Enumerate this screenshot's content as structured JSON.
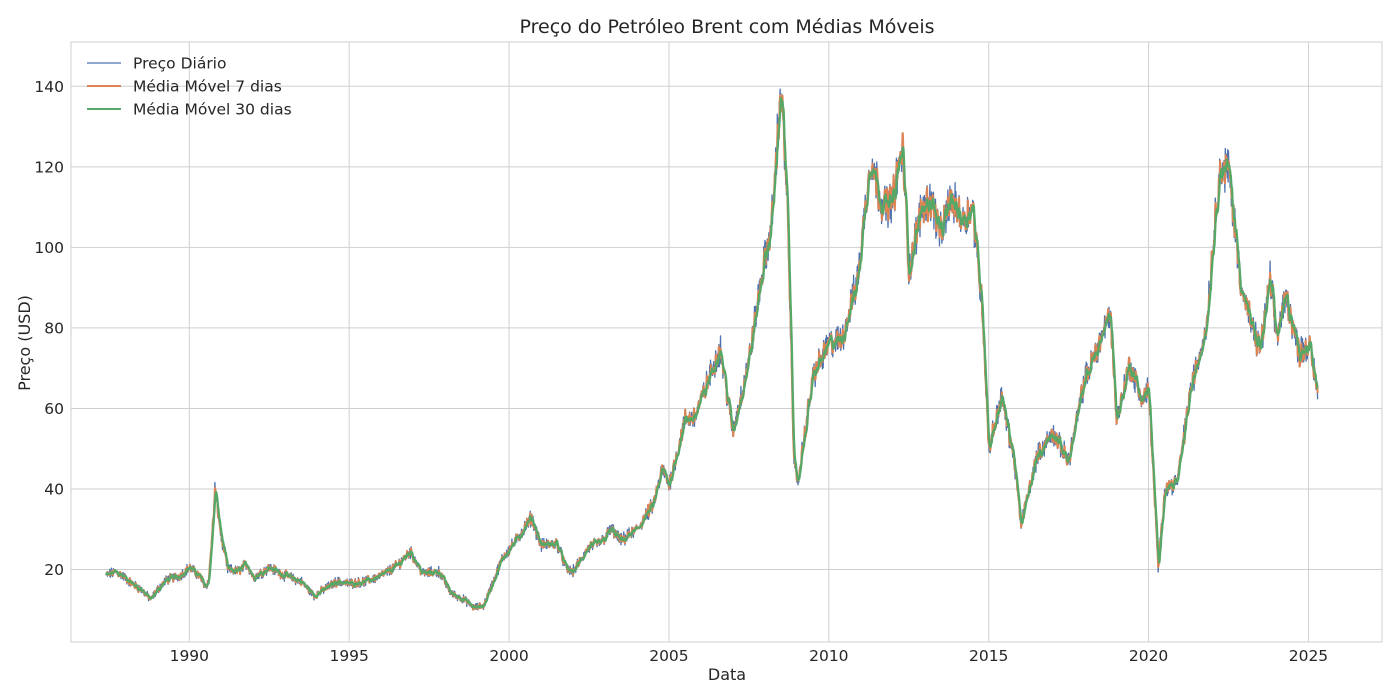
{
  "chart_data": {
    "type": "line",
    "title": "Preço do Petróleo Brent com Médias Móveis",
    "xlabel": "Data",
    "ylabel": "Preço (USD)",
    "xlim": [
      1986.3,
      2027.3
    ],
    "ylim": [
      2,
      151
    ],
    "x_ticks": [
      1990,
      1995,
      2000,
      2005,
      2010,
      2015,
      2020,
      2025
    ],
    "y_ticks": [
      20,
      40,
      60,
      80,
      100,
      120,
      140
    ],
    "grid": true,
    "legend_position": "top-left",
    "series": [
      {
        "name": "Preço Diário",
        "color": "#4c72b0"
      },
      {
        "name": "Média Móvel 7 dias",
        "color": "#dd8452"
      },
      {
        "name": "Média Móvel 30 dias",
        "color": "#55a868"
      }
    ],
    "price_points": [
      [
        1987.4,
        18.5
      ],
      [
        1987.7,
        19.5
      ],
      [
        1987.9,
        18.5
      ],
      [
        1988.2,
        16.5
      ],
      [
        1988.5,
        15.0
      ],
      [
        1988.8,
        12.5
      ],
      [
        1989.0,
        15.0
      ],
      [
        1989.3,
        17.5
      ],
      [
        1989.7,
        18.5
      ],
      [
        1990.0,
        20.5
      ],
      [
        1990.3,
        18.5
      ],
      [
        1990.5,
        16.0
      ],
      [
        1990.6,
        17.0
      ],
      [
        1990.75,
        33.0
      ],
      [
        1990.8,
        40.0
      ],
      [
        1991.0,
        28.0
      ],
      [
        1991.2,
        20.0
      ],
      [
        1991.5,
        19.5
      ],
      [
        1991.8,
        21.5
      ],
      [
        1992.0,
        18.0
      ],
      [
        1992.5,
        20.5
      ],
      [
        1993.0,
        18.5
      ],
      [
        1993.5,
        17.0
      ],
      [
        1993.9,
        13.5
      ],
      [
        1994.3,
        15.5
      ],
      [
        1994.6,
        17.0
      ],
      [
        1995.0,
        16.5
      ],
      [
        1995.5,
        17.0
      ],
      [
        1996.0,
        18.5
      ],
      [
        1996.5,
        21.0
      ],
      [
        1996.9,
        24.5
      ],
      [
        1997.3,
        19.0
      ],
      [
        1997.8,
        19.5
      ],
      [
        1998.2,
        14.0
      ],
      [
        1998.6,
        12.5
      ],
      [
        1998.9,
        10.5
      ],
      [
        1999.2,
        11.0
      ],
      [
        1999.5,
        17.0
      ],
      [
        1999.8,
        23.0
      ],
      [
        2000.2,
        27.0
      ],
      [
        2000.7,
        33.0
      ],
      [
        2001.0,
        26.0
      ],
      [
        2001.5,
        26.5
      ],
      [
        2001.8,
        20.0
      ],
      [
        2002.0,
        19.5
      ],
      [
        2002.5,
        25.5
      ],
      [
        2002.9,
        27.0
      ],
      [
        2003.2,
        30.0
      ],
      [
        2003.5,
        27.0
      ],
      [
        2004.0,
        30.0
      ],
      [
        2004.5,
        36.0
      ],
      [
        2004.8,
        45.0
      ],
      [
        2005.0,
        41.0
      ],
      [
        2005.5,
        57.0
      ],
      [
        2005.8,
        58.0
      ],
      [
        2006.0,
        62.0
      ],
      [
        2006.6,
        75.0
      ],
      [
        2007.0,
        54.0
      ],
      [
        2007.5,
        72.0
      ],
      [
        2007.9,
        93.0
      ],
      [
        2008.2,
        105.0
      ],
      [
        2008.5,
        140.0
      ],
      [
        2008.7,
        110.0
      ],
      [
        2008.9,
        50.0
      ],
      [
        2009.0,
        40.0
      ],
      [
        2009.5,
        68.0
      ],
      [
        2010.0,
        76.0
      ],
      [
        2010.4,
        77.0
      ],
      [
        2010.9,
        92.0
      ],
      [
        2011.3,
        122.0
      ],
      [
        2011.7,
        110.0
      ],
      [
        2012.0,
        112.0
      ],
      [
        2012.3,
        125.0
      ],
      [
        2012.5,
        94.0
      ],
      [
        2012.9,
        110.0
      ],
      [
        2013.2,
        112.0
      ],
      [
        2013.5,
        103.0
      ],
      [
        2013.8,
        112.0
      ],
      [
        2014.2,
        107.0
      ],
      [
        2014.5,
        110.0
      ],
      [
        2014.8,
        85.0
      ],
      [
        2015.0,
        50.0
      ],
      [
        2015.4,
        63.0
      ],
      [
        2015.8,
        47.0
      ],
      [
        2016.0,
        31.0
      ],
      [
        2016.5,
        48.0
      ],
      [
        2017.0,
        54.0
      ],
      [
        2017.5,
        47.0
      ],
      [
        2018.0,
        67.0
      ],
      [
        2018.4,
        75.0
      ],
      [
        2018.8,
        84.0
      ],
      [
        2019.0,
        57.0
      ],
      [
        2019.4,
        71.0
      ],
      [
        2019.8,
        62.0
      ],
      [
        2020.0,
        65.0
      ],
      [
        2020.3,
        20.0
      ],
      [
        2020.5,
        40.0
      ],
      [
        2020.9,
        42.0
      ],
      [
        2021.3,
        64.0
      ],
      [
        2021.8,
        80.0
      ],
      [
        2022.2,
        118.0
      ],
      [
        2022.5,
        120.0
      ],
      [
        2022.9,
        90.0
      ],
      [
        2023.3,
        78.0
      ],
      [
        2023.5,
        75.0
      ],
      [
        2023.8,
        92.0
      ],
      [
        2024.0,
        78.0
      ],
      [
        2024.3,
        88.0
      ],
      [
        2024.7,
        74.0
      ],
      [
        2025.0,
        76.0
      ],
      [
        2025.3,
        64.0
      ]
    ]
  }
}
